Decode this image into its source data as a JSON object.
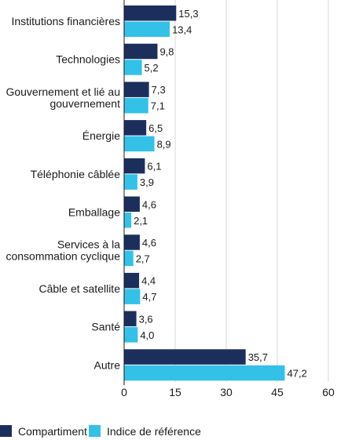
{
  "chart_data": {
    "type": "bar",
    "orientation": "horizontal",
    "categories": [
      [
        "Institutions financières"
      ],
      [
        "Technologies"
      ],
      [
        "Gouvernement et lié au",
        "gouvernement"
      ],
      [
        "Énergie"
      ],
      [
        "Téléphonie câblée"
      ],
      [
        "Emballage"
      ],
      [
        "Services à la",
        "consommation cyclique"
      ],
      [
        "Câble et satellite"
      ],
      [
        "Santé"
      ],
      [
        "Autre"
      ]
    ],
    "series": [
      {
        "name": "Compartiment",
        "color": "#1c2f5c",
        "values": [
          15.3,
          9.8,
          7.3,
          6.5,
          6.1,
          4.6,
          4.6,
          4.4,
          3.6,
          35.7
        ],
        "labels": [
          "15,3",
          "9,8",
          "7,3",
          "6,5",
          "6,1",
          "4,6",
          "4,6",
          "4,4",
          "3,6",
          "35,7"
        ]
      },
      {
        "name": "Indice de référence",
        "color": "#33c1e8",
        "values": [
          13.4,
          5.2,
          7.1,
          8.9,
          3.9,
          2.1,
          2.7,
          4.7,
          4.0,
          47.2
        ],
        "labels": [
          "13,4",
          "5,2",
          "7,1",
          "8,9",
          "3,9",
          "2,1",
          "2,7",
          "4,7",
          "4,0",
          "47,2"
        ]
      }
    ],
    "xlim": [
      0,
      60
    ],
    "xticks": [
      0,
      15,
      30,
      45,
      60
    ],
    "grid": true,
    "legend_position": "bottom-left",
    "title": "",
    "xlabel": "",
    "ylabel": ""
  }
}
